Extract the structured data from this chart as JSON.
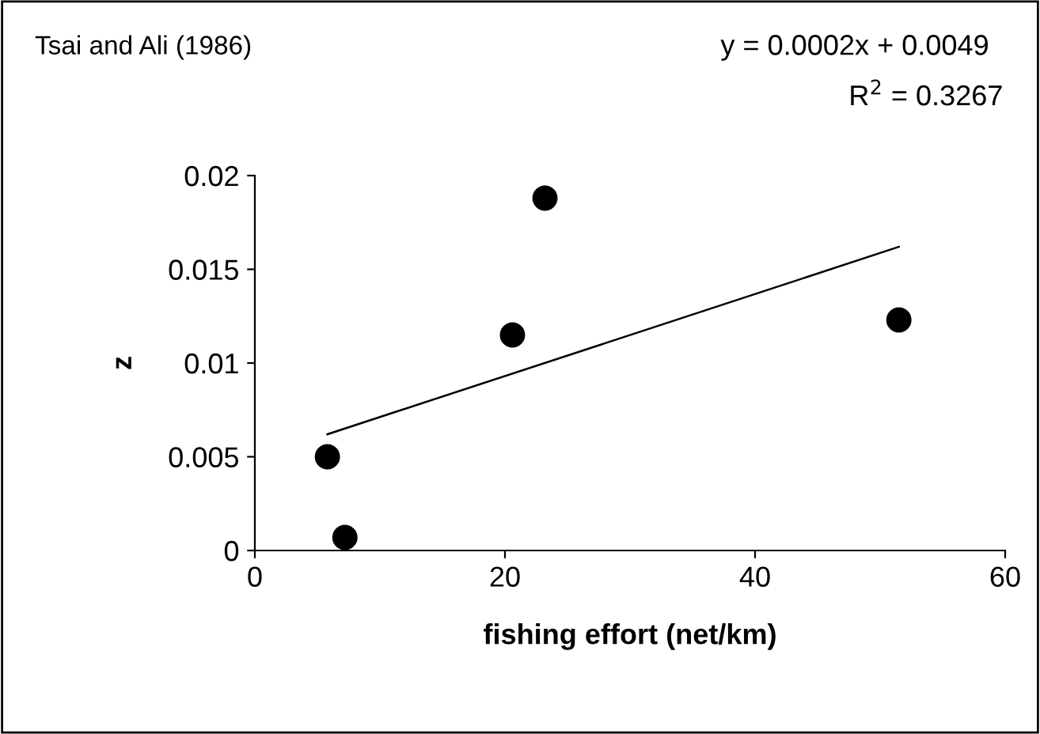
{
  "chart_data": {
    "type": "scatter",
    "title": "Tsai and Ali (1986)",
    "xlabel": "fishing effort (net/km)",
    "ylabel": "z",
    "annotations": [
      "y = 0.0002x + 0.0049",
      "R$^{2}$ = 0.3267"
    ],
    "series": [
      {
        "color": "#000000",
        "marker": "circle",
        "x": [
          5.8,
          7.2,
          20.6,
          23.2,
          51.5
        ],
        "values": [
          0.005,
          0.0007,
          0.0115,
          0.0188,
          0.0123
        ]
      },
      {
        "type": "line",
        "color": "#000000",
        "marker": "none",
        "line_style": "solid",
        "x": [
          5.8,
          51.5
        ],
        "values": [
          0.0062,
          0.0162
        ]
      }
    ],
    "xlim": [
      0,
      60
    ],
    "xticks": [
      0,
      20,
      40,
      60
    ],
    "ylim": [
      0,
      0.02
    ],
    "yticks": [
      0,
      0.005,
      0.01,
      0.015,
      0.02
    ],
    "grid": false,
    "legend": false
  }
}
